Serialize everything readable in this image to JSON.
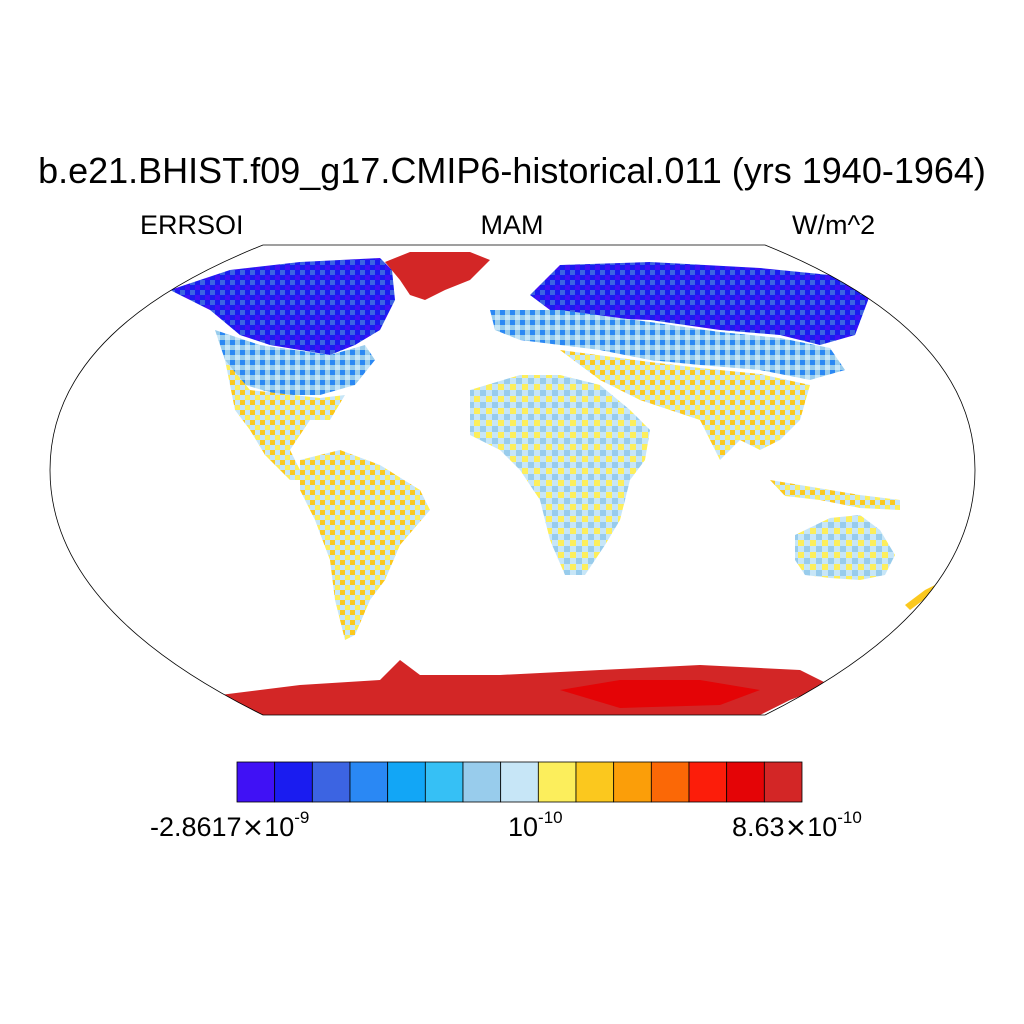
{
  "title": "b.e21.BHIST.f09_g17.CMIP6-historical.011 (yrs 1940-1964)",
  "left_string": "ERRSOI",
  "center_string": "MAM",
  "right_string": "W/m^2",
  "colorbar": {
    "colors": [
      "#4011f5",
      "#1a1cf0",
      "#3c64e2",
      "#2a88f4",
      "#12a6f6",
      "#36c0f5",
      "#98ccec",
      "#c7e6f7",
      "#fcee5c",
      "#fbc81e",
      "#fb9e09",
      "#fb6806",
      "#fc1d0a",
      "#e40406",
      "#d32626"
    ],
    "labels": [
      {
        "mantissa": "-2.8617",
        "times": "×",
        "base": "10",
        "exp": "-9"
      },
      {
        "mantissa": "",
        "times": "",
        "base": "10",
        "exp": "-10"
      },
      {
        "mantissa": "8.63",
        "times": "×",
        "base": "10",
        "exp": "-10"
      }
    ]
  },
  "legend_semantics": {
    "north_high_latitudes": "blue (negative)",
    "greenland": "red",
    "antarctica": "red",
    "tropics_midlatitudes": "light blue / yellow / orange mix"
  }
}
